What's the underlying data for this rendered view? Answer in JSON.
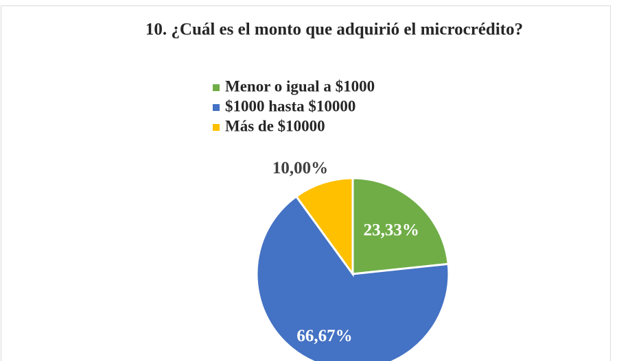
{
  "chart_data": {
    "type": "pie",
    "title": "10. ¿Cuál es el monto que adquirió el microcrédito?",
    "categories": [
      "Menor o igual a $1000",
      "$1000 hasta $10000",
      "Más de $10000"
    ],
    "values": [
      23.33,
      66.67,
      10.0
    ],
    "value_labels": [
      "23,33%",
      "66,67%",
      "10,00%"
    ],
    "colors": [
      "#70ad47",
      "#4472c4",
      "#ffc000"
    ],
    "legend": "top"
  }
}
